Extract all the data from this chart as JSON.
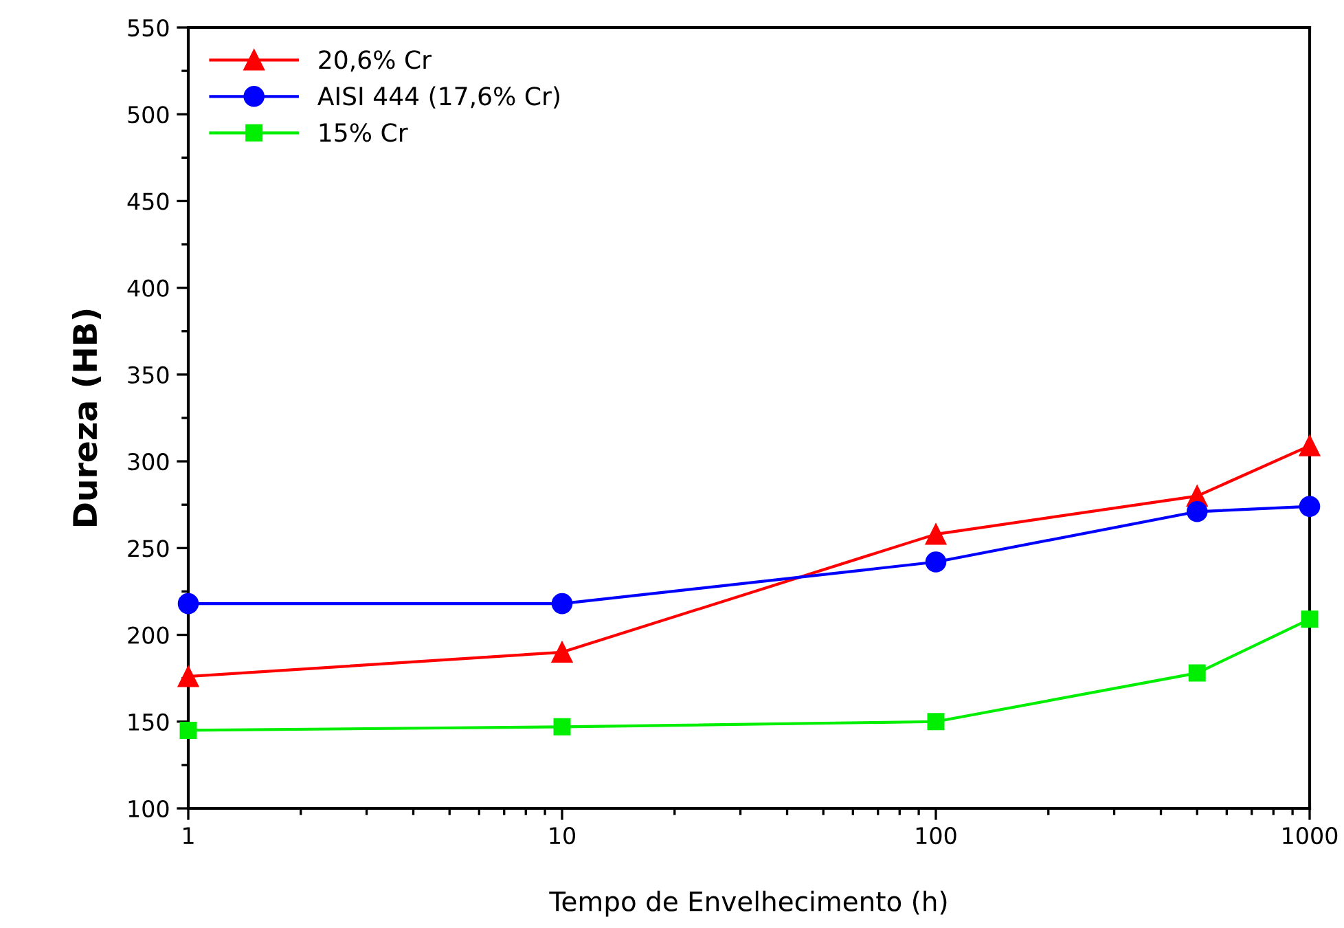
{
  "chart_data": {
    "type": "line",
    "xlabel": "Tempo de Envelhecimento (h)",
    "ylabel": "Dureza (HB)",
    "x": [
      1,
      10,
      100,
      500,
      1000
    ],
    "series": [
      {
        "name": "20,6% Cr",
        "color": "#ff0000",
        "marker": "triangle",
        "values": [
          176,
          190,
          258,
          280,
          309
        ]
      },
      {
        "name": "AISI 444 (17,6% Cr)",
        "color": "#0000ff",
        "marker": "circle",
        "values": [
          218,
          218,
          242,
          271,
          274
        ]
      },
      {
        "name": "15% Cr",
        "color": "#00ee00",
        "marker": "square",
        "values": [
          145,
          147,
          150,
          178,
          209
        ]
      }
    ],
    "log": "x",
    "xlim": [
      1,
      1000
    ],
    "xticks": [
      1,
      10,
      100,
      1000
    ],
    "ylim": [
      100,
      550
    ],
    "yticks": [
      100,
      150,
      200,
      250,
      300,
      350,
      400,
      450,
      500,
      550
    ],
    "grid": false,
    "legend": "top left",
    "line_style": "solid"
  }
}
